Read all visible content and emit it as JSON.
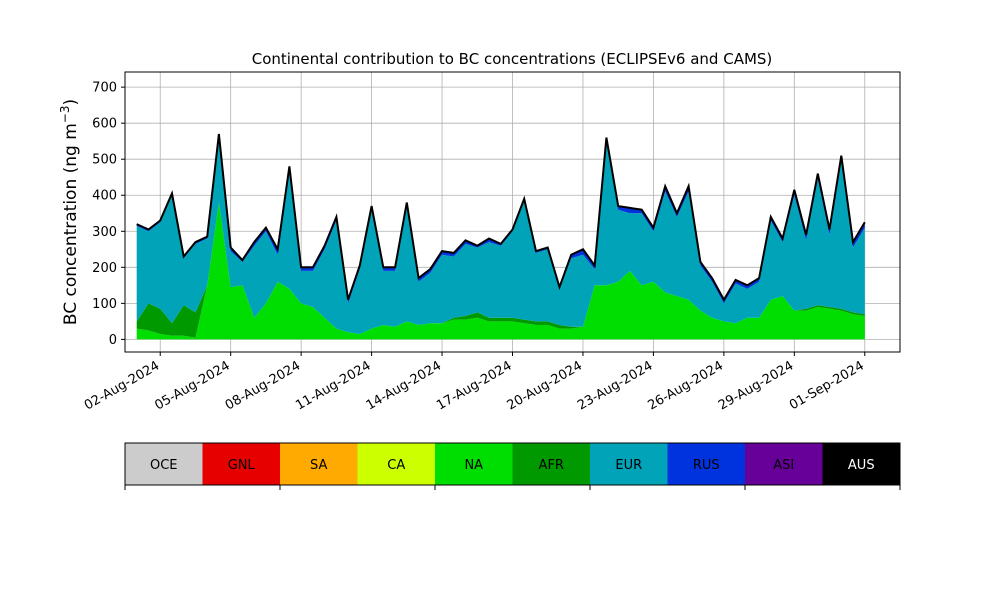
{
  "chart_data": {
    "type": "area",
    "stacked": true,
    "title": "Continental contribution to BC concentrations (ECLIPSEv6 and CAMS)",
    "ylabel": "BC concentration (ng m",
    "ylabel_sup": "−3",
    "ylabel_close": ")",
    "xlabel": "",
    "ylim": [
      -35,
      742
    ],
    "xlim": [
      "2024-07-31T12:00",
      "2024-09-02T12:00"
    ],
    "yticks": [
      0,
      100,
      200,
      300,
      400,
      500,
      600,
      700
    ],
    "grid": true,
    "xtick_labels": [
      "02-Aug-2024",
      "05-Aug-2024",
      "08-Aug-2024",
      "11-Aug-2024",
      "14-Aug-2024",
      "17-Aug-2024",
      "20-Aug-2024",
      "23-Aug-2024",
      "26-Aug-2024",
      "29-Aug-2024",
      "01-Sep-2024"
    ],
    "xticks": [
      "2024-08-02",
      "2024-08-05",
      "2024-08-08",
      "2024-08-11",
      "2024-08-14",
      "2024-08-17",
      "2024-08-20",
      "2024-08-23",
      "2024-08-26",
      "2024-08-29",
      "2024-09-01"
    ],
    "x": [
      "2024-08-01T00:00",
      "2024-08-01T12:00",
      "2024-08-02T00:00",
      "2024-08-02T12:00",
      "2024-08-03T00:00",
      "2024-08-03T12:00",
      "2024-08-04T00:00",
      "2024-08-04T12:00",
      "2024-08-05T00:00",
      "2024-08-05T12:00",
      "2024-08-06T00:00",
      "2024-08-06T12:00",
      "2024-08-07T00:00",
      "2024-08-07T12:00",
      "2024-08-08T00:00",
      "2024-08-08T12:00",
      "2024-08-09T00:00",
      "2024-08-09T12:00",
      "2024-08-10T00:00",
      "2024-08-10T12:00",
      "2024-08-11T00:00",
      "2024-08-11T12:00",
      "2024-08-12T00:00",
      "2024-08-12T12:00",
      "2024-08-13T00:00",
      "2024-08-13T12:00",
      "2024-08-14T00:00",
      "2024-08-14T12:00",
      "2024-08-15T00:00",
      "2024-08-15T12:00",
      "2024-08-16T00:00",
      "2024-08-16T12:00",
      "2024-08-17T00:00",
      "2024-08-17T12:00",
      "2024-08-18T00:00",
      "2024-08-18T12:00",
      "2024-08-19T00:00",
      "2024-08-19T12:00",
      "2024-08-20T00:00",
      "2024-08-20T12:00",
      "2024-08-21T00:00",
      "2024-08-21T12:00",
      "2024-08-22T00:00",
      "2024-08-22T12:00",
      "2024-08-23T00:00",
      "2024-08-23T12:00",
      "2024-08-24T00:00",
      "2024-08-24T12:00",
      "2024-08-25T00:00",
      "2024-08-25T12:00",
      "2024-08-26T00:00",
      "2024-08-26T12:00",
      "2024-08-27T00:00",
      "2024-08-27T12:00",
      "2024-08-28T00:00",
      "2024-08-28T12:00",
      "2024-08-29T00:00",
      "2024-08-29T12:00",
      "2024-08-30T00:00",
      "2024-08-30T12:00",
      "2024-08-31T00:00",
      "2024-08-31T12:00",
      "2024-09-01T00:00"
    ],
    "series": [
      {
        "name": "OCE",
        "color": "#cccccc",
        "values": [
          0,
          0,
          0,
          0,
          0,
          0,
          0,
          0,
          0,
          0,
          0,
          0,
          0,
          0,
          0,
          0,
          0,
          0,
          0,
          0,
          0,
          0,
          0,
          0,
          0,
          0,
          0,
          0,
          0,
          0,
          0,
          0,
          0,
          0,
          0,
          0,
          0,
          0,
          0,
          0,
          0,
          0,
          0,
          0,
          0,
          0,
          0,
          0,
          0,
          0,
          0,
          0,
          0,
          0,
          0,
          0,
          0,
          0,
          0,
          0,
          0,
          0,
          0
        ]
      },
      {
        "name": "GNL",
        "color": "#e60000",
        "values": [
          0,
          0,
          0,
          0,
          0,
          0,
          0,
          0,
          0,
          0,
          0,
          0,
          0,
          0,
          0,
          0,
          0,
          0,
          0,
          0,
          0,
          0,
          0,
          0,
          0,
          0,
          0,
          0,
          0,
          0,
          0,
          0,
          0,
          0,
          0,
          0,
          0,
          0,
          0,
          0,
          0,
          0,
          0,
          0,
          0,
          0,
          0,
          0,
          0,
          0,
          0,
          0,
          0,
          0,
          0,
          0,
          0,
          0,
          0,
          0,
          0,
          0,
          0
        ]
      },
      {
        "name": "SA",
        "color": "#ffaa00",
        "values": [
          0,
          0,
          0,
          0,
          0,
          0,
          0,
          0,
          0,
          0,
          0,
          0,
          0,
          0,
          0,
          0,
          0,
          0,
          0,
          0,
          0,
          0,
          0,
          0,
          0,
          0,
          0,
          0,
          0,
          0,
          0,
          0,
          0,
          0,
          0,
          0,
          0,
          0,
          0,
          0,
          0,
          0,
          0,
          0,
          0,
          0,
          0,
          0,
          0,
          0,
          0,
          0,
          0,
          0,
          0,
          0,
          0,
          0,
          0,
          0,
          0,
          0,
          0
        ]
      },
      {
        "name": "CA",
        "color": "#ccff00",
        "values": [
          0,
          0,
          0,
          0,
          0,
          0,
          0,
          0,
          0,
          0,
          0,
          0,
          0,
          0,
          0,
          0,
          0,
          0,
          0,
          0,
          0,
          0,
          0,
          0,
          0,
          0,
          0,
          0,
          0,
          0,
          0,
          0,
          0,
          0,
          0,
          0,
          0,
          0,
          0,
          0,
          0,
          0,
          0,
          0,
          0,
          0,
          0,
          0,
          0,
          0,
          0,
          0,
          0,
          0,
          0,
          0,
          0,
          0,
          0,
          0,
          0,
          0,
          0
        ]
      },
      {
        "name": "NA",
        "color": "#00dd00",
        "values": [
          30,
          25,
          15,
          10,
          10,
          5,
          150,
          380,
          145,
          150,
          60,
          100,
          160,
          140,
          100,
          90,
          60,
          30,
          20,
          15,
          30,
          40,
          35,
          50,
          40,
          45,
          45,
          55,
          55,
          60,
          50,
          50,
          50,
          45,
          40,
          40,
          30,
          30,
          35,
          150,
          150,
          160,
          190,
          150,
          160,
          130,
          120,
          110,
          80,
          60,
          50,
          45,
          60,
          60,
          110,
          120,
          80,
          80,
          90,
          85,
          80,
          70,
          65
        ]
      },
      {
        "name": "AFR",
        "color": "#009900",
        "values": [
          20,
          75,
          70,
          35,
          85,
          70,
          0,
          0,
          0,
          0,
          0,
          0,
          0,
          0,
          0,
          0,
          0,
          0,
          0,
          0,
          0,
          0,
          0,
          0,
          0,
          0,
          0,
          5,
          10,
          15,
          10,
          10,
          10,
          10,
          10,
          10,
          10,
          5,
          0,
          0,
          0,
          0,
          0,
          0,
          0,
          0,
          0,
          0,
          0,
          0,
          0,
          0,
          0,
          0,
          0,
          0,
          0,
          5,
          5,
          5,
          5,
          5,
          5
        ]
      },
      {
        "name": "EUR",
        "color": "#00a3b8",
        "values": [
          265,
          200,
          240,
          355,
          130,
          190,
          130,
          180,
          100,
          65,
          200,
          200,
          75,
          320,
          90,
          100,
          190,
          300,
          80,
          180,
          330,
          150,
          155,
          320,
          120,
          140,
          190,
          170,
          200,
          180,
          210,
          200,
          240,
          330,
          190,
          200,
          100,
          190,
          200,
          45,
          400,
          200,
          160,
          200,
          140,
          280,
          220,
          300,
          125,
          100,
          50,
          110,
          80,
          100,
          220,
          150,
          320,
          190,
          350,
          200,
          410,
          180,
          240
        ]
      },
      {
        "name": "RUS",
        "color": "#0033dd",
        "values": [
          5,
          5,
          5,
          5,
          5,
          5,
          5,
          10,
          10,
          5,
          10,
          10,
          15,
          20,
          10,
          10,
          10,
          10,
          10,
          10,
          10,
          10,
          10,
          10,
          10,
          10,
          10,
          10,
          10,
          5,
          10,
          5,
          5,
          5,
          5,
          5,
          5,
          10,
          15,
          10,
          10,
          10,
          15,
          10,
          10,
          15,
          10,
          15,
          10,
          10,
          10,
          10,
          10,
          10,
          10,
          10,
          15,
          15,
          15,
          15,
          15,
          15,
          15
        ]
      },
      {
        "name": "ASI",
        "color": "#660099",
        "values": [
          0,
          0,
          0,
          0,
          0,
          0,
          0,
          0,
          0,
          0,
          0,
          0,
          0,
          0,
          0,
          0,
          0,
          0,
          0,
          0,
          0,
          0,
          0,
          0,
          0,
          0,
          0,
          0,
          0,
          0,
          0,
          0,
          0,
          0,
          0,
          0,
          0,
          0,
          0,
          0,
          0,
          0,
          0,
          0,
          0,
          0,
          0,
          0,
          0,
          0,
          0,
          0,
          0,
          0,
          0,
          0,
          0,
          0,
          0,
          0,
          0,
          0,
          0
        ]
      },
      {
        "name": "AUS",
        "color": "#000000",
        "values": [
          0,
          0,
          0,
          0,
          0,
          0,
          0,
          0,
          0,
          0,
          0,
          0,
          0,
          0,
          0,
          0,
          0,
          0,
          0,
          0,
          0,
          0,
          0,
          0,
          0,
          0,
          0,
          0,
          0,
          0,
          0,
          0,
          0,
          0,
          0,
          0,
          0,
          0,
          0,
          0,
          0,
          0,
          0,
          0,
          0,
          0,
          0,
          0,
          0,
          0,
          0,
          0,
          0,
          0,
          0,
          0,
          0,
          0,
          0,
          0,
          0,
          0,
          0
        ]
      }
    ],
    "legend": {
      "placement": "bottom",
      "entries": [
        {
          "label": "OCE",
          "color": "#cccccc",
          "text_color": "#000000"
        },
        {
          "label": "GNL",
          "color": "#e60000",
          "text_color": "#000000"
        },
        {
          "label": "SA",
          "color": "#ffaa00",
          "text_color": "#000000"
        },
        {
          "label": "CA",
          "color": "#ccff00",
          "text_color": "#000000"
        },
        {
          "label": "NA",
          "color": "#00dd00",
          "text_color": "#000000"
        },
        {
          "label": "AFR",
          "color": "#009900",
          "text_color": "#000000"
        },
        {
          "label": "EUR",
          "color": "#00a3b8",
          "text_color": "#000000"
        },
        {
          "label": "RUS",
          "color": "#0033dd",
          "text_color": "#000000"
        },
        {
          "label": "ASI",
          "color": "#660099",
          "text_color": "#000000"
        },
        {
          "label": "AUS",
          "color": "#000000",
          "text_color": "#ffffff"
        }
      ]
    },
    "outline_color": "#000000"
  }
}
